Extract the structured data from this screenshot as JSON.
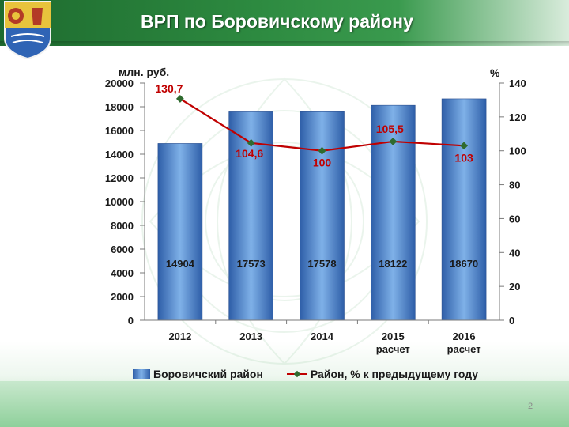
{
  "slide": {
    "title": "ВРП по Боровичскому району",
    "page_number": "2",
    "colors": {
      "title_bar": "#2d8a40",
      "bar_fill_edge": "#2e5ea8",
      "bar_fill_center": "#7fb1e8",
      "line": "#c00000",
      "marker": "#2f6b2f",
      "bottom_band": "#8fd09b"
    },
    "icons": [
      "coat-of-arms-icon"
    ]
  },
  "chart_data": {
    "type": "bar",
    "title": "",
    "categories": [
      [
        "2012"
      ],
      [
        "2013"
      ],
      [
        "2014"
      ],
      [
        "2015",
        "расчет"
      ],
      [
        "2016",
        "расчет"
      ]
    ],
    "ylabel_left": "млн. руб.",
    "ylabel_right": "%",
    "ylim_left": [
      0,
      20000
    ],
    "yticks_left": [
      0,
      2000,
      4000,
      6000,
      8000,
      10000,
      12000,
      14000,
      16000,
      18000,
      20000
    ],
    "ylim_right": [
      0,
      140
    ],
    "yticks_right": [
      0,
      20,
      40,
      60,
      80,
      100,
      120,
      140
    ],
    "grid": false,
    "legend_position": "bottom",
    "series": [
      {
        "name": "Боровичский район",
        "type": "bar",
        "axis": "left",
        "values": [
          14904,
          17573,
          17578,
          18122,
          18670
        ],
        "labels": [
          "14904",
          "17573",
          "17578",
          "18122",
          "18670"
        ]
      },
      {
        "name": "Район, % к предыдущему году",
        "type": "line",
        "axis": "right",
        "values": [
          130.7,
          104.6,
          100,
          105.5,
          103
        ],
        "labels": [
          "130,7",
          "104,6",
          "100",
          "105,5",
          "103"
        ]
      }
    ]
  }
}
